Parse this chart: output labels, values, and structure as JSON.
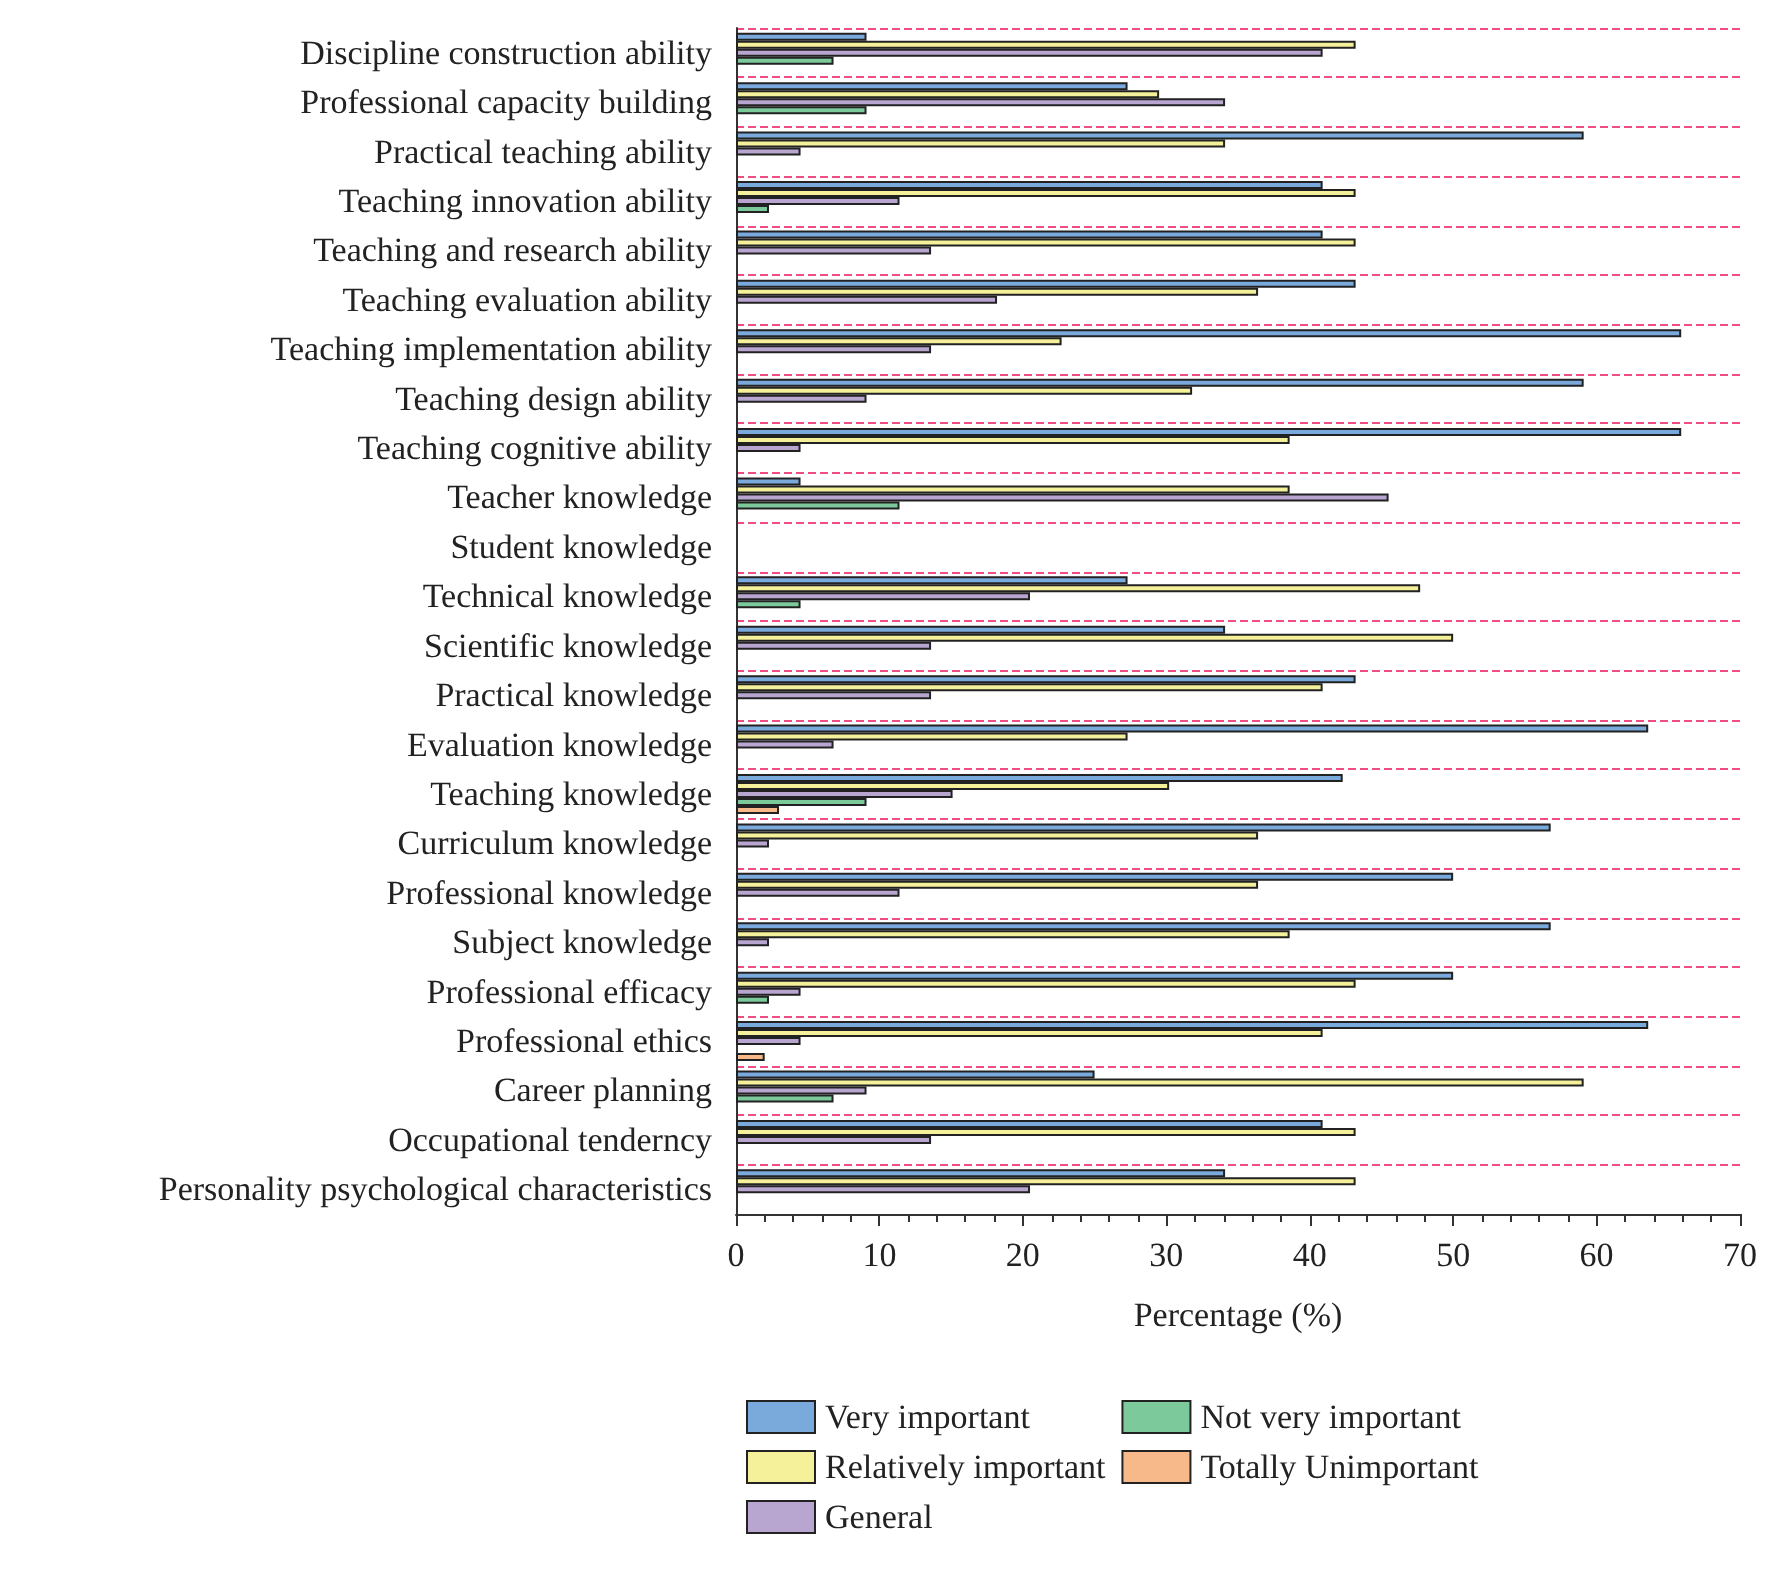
{
  "chart_data": {
    "type": "bar",
    "orientation": "horizontal",
    "xlabel": "Percentage (%)",
    "categories": [
      "Discipline construction ability",
      "Professional capacity building",
      "Practical teaching ability",
      "Teaching innovation ability",
      "Teaching and research ability",
      "Teaching evaluation ability",
      "Teaching implementation ability",
      "Teaching design ability",
      "Teaching cognitive ability",
      "Teacher knowledge",
      "Student knowledge",
      "Technical knowledge",
      "Scientific knowledge",
      "Practical knowledge",
      "Evaluation knowledge",
      "Teaching knowledge",
      "Curriculum knowledge",
      "Professional knowledge",
      "Subject knowledge",
      "Professional efficacy",
      "Professional ethics",
      "Career planning",
      "Occupational tenderncy",
      "Personality psychological characteristics"
    ],
    "series": [
      {
        "name": "Very important",
        "color": "#7aa9dc",
        "values": [
          9.1,
          27.3,
          59.1,
          40.9,
          40.9,
          43.2,
          65.9,
          59.1,
          65.9,
          4.5,
          null,
          27.3,
          34.1,
          43.2,
          63.6,
          42.3,
          56.8,
          50.0,
          56.8,
          50.0,
          63.6,
          25.0,
          40.9,
          34.1
        ]
      },
      {
        "name": "Relatively important",
        "color": "#f5f09a",
        "values": [
          43.2,
          29.5,
          34.1,
          43.2,
          43.2,
          36.4,
          22.7,
          31.8,
          38.6,
          38.6,
          null,
          47.7,
          50.0,
          40.9,
          27.3,
          30.2,
          36.4,
          36.4,
          38.6,
          43.2,
          40.9,
          59.1,
          43.2,
          43.2
        ]
      },
      {
        "name": "General",
        "color": "#b9a6d0",
        "values": [
          40.9,
          34.1,
          4.5,
          11.4,
          13.6,
          18.2,
          13.6,
          9.1,
          4.5,
          45.5,
          null,
          20.5,
          13.6,
          13.6,
          6.8,
          15.1,
          2.3,
          11.4,
          2.3,
          4.5,
          4.5,
          9.1,
          13.6,
          20.5
        ]
      },
      {
        "name": "Not very important",
        "color": "#7cc99b",
        "values": [
          6.8,
          9.1,
          null,
          2.3,
          null,
          null,
          null,
          null,
          null,
          11.4,
          null,
          4.5,
          null,
          null,
          null,
          9.1,
          null,
          null,
          null,
          2.3,
          null,
          6.8,
          null,
          null
        ]
      },
      {
        "name": "Totally Unimportant",
        "color": "#f7b98a",
        "values": [
          null,
          null,
          null,
          null,
          null,
          null,
          null,
          null,
          null,
          null,
          null,
          null,
          null,
          null,
          null,
          3.0,
          null,
          null,
          null,
          null,
          2.0,
          null,
          null,
          null
        ]
      }
    ],
    "xlim": [
      0,
      70
    ],
    "xticks": [
      0,
      10,
      20,
      30,
      40,
      50,
      60,
      70
    ],
    "grid": "y",
    "legend": "bottom"
  }
}
